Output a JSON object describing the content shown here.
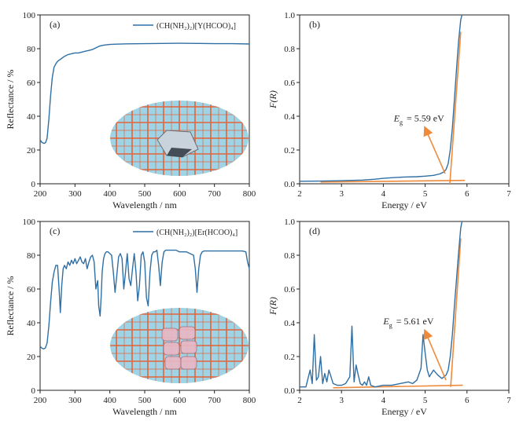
{
  "colors": {
    "curve": "#2f6fa3",
    "fit": "#ef8a3a",
    "axis": "#222222",
    "grid_paper": "#9fd3e6",
    "grid_lines": "#e2653a"
  },
  "chart_data": [
    {
      "type": "line",
      "panel_label": "(a)",
      "xlabel": "Wavelength / nm",
      "ylabel": "Reflectance / %",
      "xlim": [
        200,
        800
      ],
      "ylim": [
        0,
        100
      ],
      "xticks": [
        200,
        300,
        400,
        500,
        600,
        700,
        800
      ],
      "yticks": [
        0,
        20,
        40,
        60,
        80,
        100
      ],
      "legend": {
        "label": "(CH(NH₂)₂)[Y(HCOO)₄]",
        "position": "top-right"
      },
      "series": [
        {
          "name": "(CH(NH₂)₂)[Y(HCOO)₄]",
          "x": [
            200,
            205,
            210,
            213,
            216,
            220,
            225,
            230,
            235,
            240,
            245,
            250,
            260,
            270,
            280,
            290,
            300,
            310,
            320,
            330,
            340,
            350,
            360,
            370,
            380,
            390,
            400,
            420,
            450,
            500,
            550,
            600,
            650,
            700,
            750,
            800
          ],
          "y": [
            26,
            24.5,
            24,
            24,
            24.5,
            27,
            38,
            52,
            63,
            69,
            71,
            72.5,
            74,
            75.5,
            76.5,
            77,
            77.5,
            77.5,
            78,
            78.5,
            79,
            79.5,
            80.5,
            81.5,
            82,
            82.3,
            82.5,
            82.7,
            82.9,
            83,
            83.1,
            83.2,
            83.1,
            83,
            83,
            82.8
          ]
        }
      ],
      "inset": "photo-crystal-on-grid-paper"
    },
    {
      "type": "line",
      "panel_label": "(b)",
      "xlabel": "Energy / eV",
      "ylabel": "F(R)",
      "xlim": [
        2,
        7
      ],
      "ylim": [
        0,
        1.0
      ],
      "xticks": [
        2,
        3,
        4,
        5,
        6,
        7
      ],
      "yticks": [
        0.0,
        0.2,
        0.4,
        0.6,
        0.8,
        1.0
      ],
      "annotation": {
        "text": "E",
        "subscript": "g",
        "value": "= 5.59 eV"
      },
      "series": [
        {
          "name": "F(R)",
          "x": [
            2.0,
            2.5,
            3.0,
            3.5,
            3.8,
            4.0,
            4.2,
            4.5,
            4.8,
            5.0,
            5.2,
            5.35,
            5.45,
            5.5,
            5.55,
            5.6,
            5.65,
            5.7,
            5.75,
            5.8,
            5.85,
            5.88
          ],
          "y": [
            0.015,
            0.016,
            0.018,
            0.022,
            0.027,
            0.032,
            0.036,
            0.04,
            0.042,
            0.045,
            0.05,
            0.058,
            0.07,
            0.085,
            0.12,
            0.2,
            0.33,
            0.5,
            0.68,
            0.85,
            0.97,
            1.0
          ]
        }
      ],
      "fits": [
        {
          "x": [
            2.5,
            5.95
          ],
          "y": [
            0.01,
            0.02
          ]
        },
        {
          "x": [
            5.59,
            5.85
          ],
          "y": [
            0.0,
            0.9
          ]
        }
      ]
    },
    {
      "type": "line",
      "panel_label": "(c)",
      "xlabel": "Wavelength / nm",
      "ylabel": "Reflectance / %",
      "xlim": [
        200,
        800
      ],
      "ylim": [
        0,
        100
      ],
      "xticks": [
        200,
        300,
        400,
        500,
        600,
        700,
        800
      ],
      "yticks": [
        0,
        20,
        40,
        60,
        80,
        100
      ],
      "legend": {
        "label": "(CH(NH₂)₂)[Er(HCOO)₄]",
        "position": "top-right"
      },
      "series": [
        {
          "name": "(CH(NH₂)₂)[Er(HCOO)₄]",
          "x": [
            200,
            205,
            210,
            215,
            220,
            225,
            230,
            235,
            240,
            245,
            250,
            255,
            258,
            262,
            266,
            270,
            275,
            280,
            285,
            290,
            295,
            300,
            305,
            310,
            315,
            320,
            325,
            330,
            335,
            340,
            345,
            350,
            355,
            360,
            365,
            368,
            372,
            375,
            378,
            382,
            386,
            390,
            395,
            400,
            405,
            410,
            415,
            420,
            425,
            430,
            435,
            440,
            445,
            450,
            455,
            460,
            465,
            470,
            475,
            480,
            485,
            490,
            495,
            500,
            505,
            510,
            515,
            520,
            525,
            530,
            535,
            540,
            545,
            550,
            555,
            560,
            570,
            580,
            590,
            600,
            610,
            620,
            630,
            640,
            645,
            650,
            655,
            660,
            665,
            670,
            680,
            690,
            700,
            720,
            740,
            760,
            780,
            790,
            795,
            800
          ],
          "y": [
            26,
            25,
            24.5,
            25,
            28,
            38,
            52,
            64,
            70,
            74,
            74,
            58,
            46,
            62,
            72,
            74,
            72,
            76,
            74,
            77,
            75,
            78,
            75,
            77,
            79,
            76,
            75,
            78,
            72,
            76,
            79,
            80,
            76,
            60,
            65,
            50,
            44,
            55,
            70,
            78,
            81,
            82,
            82,
            81,
            80,
            70,
            58,
            68,
            79,
            81,
            78,
            60,
            70,
            81,
            66,
            62,
            72,
            81,
            70,
            53,
            62,
            80,
            82,
            76,
            55,
            50,
            70,
            80,
            82,
            82,
            83,
            74,
            62,
            76,
            82,
            83,
            83,
            83,
            83,
            82,
            82,
            82,
            81,
            80,
            72,
            58,
            72,
            80,
            82,
            82.5,
            82.5,
            82.5,
            82.5,
            82.5,
            82.5,
            82.5,
            82.5,
            82,
            76,
            72
          ]
        }
      ],
      "inset": "photo-crystals-on-grid-paper"
    },
    {
      "type": "line",
      "panel_label": "(d)",
      "xlabel": "Energy / eV",
      "ylabel": "F(R)",
      "xlim": [
        2,
        7
      ],
      "ylim": [
        0,
        1.0
      ],
      "xticks": [
        2,
        3,
        4,
        5,
        6,
        7
      ],
      "yticks": [
        0.0,
        0.2,
        0.4,
        0.6,
        0.8,
        1.0
      ],
      "annotation": {
        "text": "E",
        "subscript": "g",
        "value": "= 5.61 eV"
      },
      "series": [
        {
          "name": "F(R)",
          "x": [
            2.0,
            2.15,
            2.25,
            2.3,
            2.35,
            2.4,
            2.45,
            2.5,
            2.55,
            2.6,
            2.65,
            2.7,
            2.8,
            2.9,
            3.0,
            3.1,
            3.2,
            3.25,
            3.3,
            3.35,
            3.4,
            3.45,
            3.5,
            3.55,
            3.6,
            3.65,
            3.7,
            3.8,
            4.0,
            4.2,
            4.4,
            4.6,
            4.7,
            4.8,
            4.9,
            4.95,
            5.0,
            5.05,
            5.1,
            5.2,
            5.3,
            5.4,
            5.5,
            5.55,
            5.6,
            5.65,
            5.7,
            5.75,
            5.8,
            5.85,
            5.88
          ],
          "y": [
            0.02,
            0.02,
            0.12,
            0.04,
            0.33,
            0.06,
            0.08,
            0.2,
            0.04,
            0.1,
            0.05,
            0.12,
            0.04,
            0.03,
            0.03,
            0.04,
            0.08,
            0.38,
            0.05,
            0.15,
            0.09,
            0.04,
            0.03,
            0.05,
            0.03,
            0.08,
            0.03,
            0.02,
            0.03,
            0.03,
            0.04,
            0.05,
            0.04,
            0.06,
            0.13,
            0.33,
            0.22,
            0.12,
            0.08,
            0.12,
            0.09,
            0.07,
            0.09,
            0.12,
            0.2,
            0.33,
            0.5,
            0.66,
            0.82,
            0.96,
            1.0
          ]
        }
      ],
      "fits": [
        {
          "x": [
            2.8,
            5.9
          ],
          "y": [
            0.015,
            0.03
          ]
        },
        {
          "x": [
            5.61,
            5.85
          ],
          "y": [
            0.02,
            0.9
          ]
        }
      ]
    }
  ]
}
